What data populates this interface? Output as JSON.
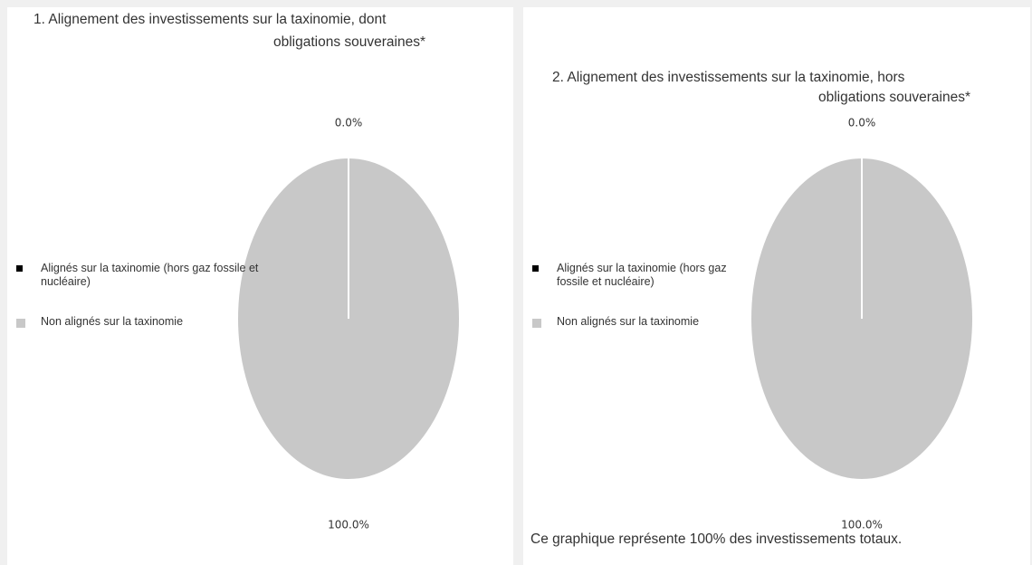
{
  "chart_data": [
    {
      "type": "pie",
      "title": [
        "1. Alignement des investissements sur la taxinomie, dont",
        "obligations souveraines*"
      ],
      "categories": [
        "Alignés sur la taxinomie (hors gaz fossile et nucléaire)",
        "Non alignés sur la taxinomie"
      ],
      "values": [
        0,
        100
      ],
      "value_labels": [
        "0.0%",
        "100.0%"
      ],
      "colors": [
        "#000000",
        "#c8c8c8"
      ]
    },
    {
      "type": "pie",
      "title": [
        "2. Alignement des investissements sur la taxinomie, hors",
        "obligations souveraines*"
      ],
      "categories": [
        "Alignés sur la taxinomie (hors gaz fossile et nucléaire)",
        "Non alignés sur la taxinomie"
      ],
      "values": [
        0,
        100
      ],
      "value_labels": [
        "0.0%",
        "100.0%"
      ],
      "colors": [
        "#000000",
        "#c8c8c8"
      ],
      "note": "Ce graphique représente 100% des investissements totaux."
    }
  ]
}
